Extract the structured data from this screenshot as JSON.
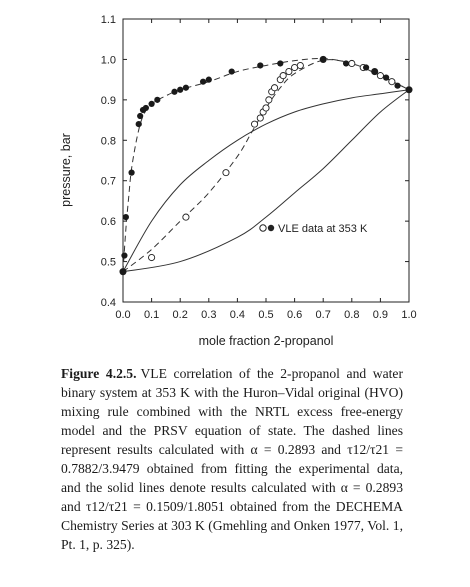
{
  "chart_data": {
    "type": "scatter",
    "xlabel": "mole fraction 2-propanol",
    "ylabel": "pressure, bar",
    "xlim": [
      0.0,
      1.0
    ],
    "ylim": [
      0.4,
      1.1
    ],
    "xticks": [
      "0.0",
      "0.1",
      "0.2",
      "0.3",
      "0.4",
      "0.5",
      "0.6",
      "0.7",
      "0.8",
      "0.9",
      "1.0"
    ],
    "yticks": [
      "0.4",
      "0.5",
      "0.6",
      "0.7",
      "0.8",
      "0.9",
      "1.0",
      "1.1"
    ],
    "legend": {
      "label": "VLE data at 353 K",
      "placement": "inside-right"
    },
    "points_liquid": [
      [
        0.0,
        0.475
      ],
      [
        0.005,
        0.515
      ],
      [
        0.01,
        0.61
      ],
      [
        0.03,
        0.72
      ],
      [
        0.055,
        0.84
      ],
      [
        0.06,
        0.86
      ],
      [
        0.07,
        0.875
      ],
      [
        0.08,
        0.88
      ],
      [
        0.1,
        0.89
      ],
      [
        0.12,
        0.9
      ],
      [
        0.18,
        0.92
      ],
      [
        0.2,
        0.925
      ],
      [
        0.22,
        0.93
      ],
      [
        0.28,
        0.945
      ],
      [
        0.3,
        0.95
      ],
      [
        0.38,
        0.97
      ],
      [
        0.48,
        0.985
      ],
      [
        0.55,
        0.99
      ],
      [
        0.7,
        1.0
      ],
      [
        0.78,
        0.99
      ],
      [
        0.85,
        0.98
      ],
      [
        0.88,
        0.97
      ],
      [
        0.92,
        0.955
      ],
      [
        0.96,
        0.935
      ],
      [
        1.0,
        0.925
      ]
    ],
    "points_vapor": [
      [
        0.0,
        0.475
      ],
      [
        0.1,
        0.51
      ],
      [
        0.22,
        0.61
      ],
      [
        0.36,
        0.72
      ],
      [
        0.46,
        0.84
      ],
      [
        0.48,
        0.855
      ],
      [
        0.49,
        0.87
      ],
      [
        0.5,
        0.88
      ],
      [
        0.51,
        0.9
      ],
      [
        0.52,
        0.92
      ],
      [
        0.53,
        0.93
      ],
      [
        0.55,
        0.95
      ],
      [
        0.56,
        0.96
      ],
      [
        0.58,
        0.97
      ],
      [
        0.6,
        0.98
      ],
      [
        0.62,
        0.985
      ],
      [
        0.7,
        1.0
      ],
      [
        0.8,
        0.99
      ],
      [
        0.84,
        0.98
      ],
      [
        0.88,
        0.97
      ],
      [
        0.9,
        0.96
      ],
      [
        0.94,
        0.945
      ],
      [
        1.0,
        0.925
      ]
    ],
    "dashed_bubble": [
      [
        0.0,
        0.475
      ],
      [
        0.01,
        0.58
      ],
      [
        0.02,
        0.66
      ],
      [
        0.03,
        0.73
      ],
      [
        0.05,
        0.81
      ],
      [
        0.07,
        0.86
      ],
      [
        0.1,
        0.89
      ],
      [
        0.15,
        0.91
      ],
      [
        0.2,
        0.925
      ],
      [
        0.3,
        0.945
      ],
      [
        0.4,
        0.97
      ],
      [
        0.5,
        0.985
      ],
      [
        0.6,
        0.997
      ],
      [
        0.7,
        1.002
      ],
      [
        0.8,
        0.99
      ],
      [
        0.9,
        0.96
      ],
      [
        1.0,
        0.925
      ]
    ],
    "dashed_dew": [
      [
        0.0,
        0.475
      ],
      [
        0.1,
        0.53
      ],
      [
        0.2,
        0.6
      ],
      [
        0.3,
        0.67
      ],
      [
        0.4,
        0.76
      ],
      [
        0.45,
        0.82
      ],
      [
        0.5,
        0.88
      ],
      [
        0.55,
        0.93
      ],
      [
        0.6,
        0.965
      ],
      [
        0.7,
        0.998
      ],
      [
        0.8,
        0.99
      ],
      [
        0.9,
        0.96
      ],
      [
        1.0,
        0.925
      ]
    ],
    "solid_bubble": [
      [
        0.0,
        0.475
      ],
      [
        0.1,
        0.6
      ],
      [
        0.2,
        0.69
      ],
      [
        0.3,
        0.75
      ],
      [
        0.4,
        0.8
      ],
      [
        0.5,
        0.84
      ],
      [
        0.6,
        0.87
      ],
      [
        0.7,
        0.89
      ],
      [
        0.8,
        0.905
      ],
      [
        0.9,
        0.915
      ],
      [
        1.0,
        0.925
      ]
    ],
    "solid_dew": [
      [
        0.0,
        0.475
      ],
      [
        0.2,
        0.5
      ],
      [
        0.4,
        0.56
      ],
      [
        0.5,
        0.61
      ],
      [
        0.6,
        0.67
      ],
      [
        0.7,
        0.73
      ],
      [
        0.8,
        0.8
      ],
      [
        0.9,
        0.87
      ],
      [
        1.0,
        0.925
      ]
    ]
  },
  "caption": {
    "label": "Figure 4.2.5.",
    "text": "VLE correlation of the 2-propanol and water binary system at 353 K with the Huron–Vidal original (HVO) mixing rule combined with the NRTL excess free-energy model and the PRSV equation of state. The dashed lines represent results calculated with α = 0.2893 and τ12/τ21 = 0.7882/3.9479 obtained from fitting the experimental data, and the solid lines denote results calculated with α = 0.2893 and τ12/τ21 = 0.1509/1.8051 obtained from the DECHEMA Chemistry Series at 303 K (Gmehling and Onken 1977, Vol. 1, Pt. 1, p. 325)."
  }
}
